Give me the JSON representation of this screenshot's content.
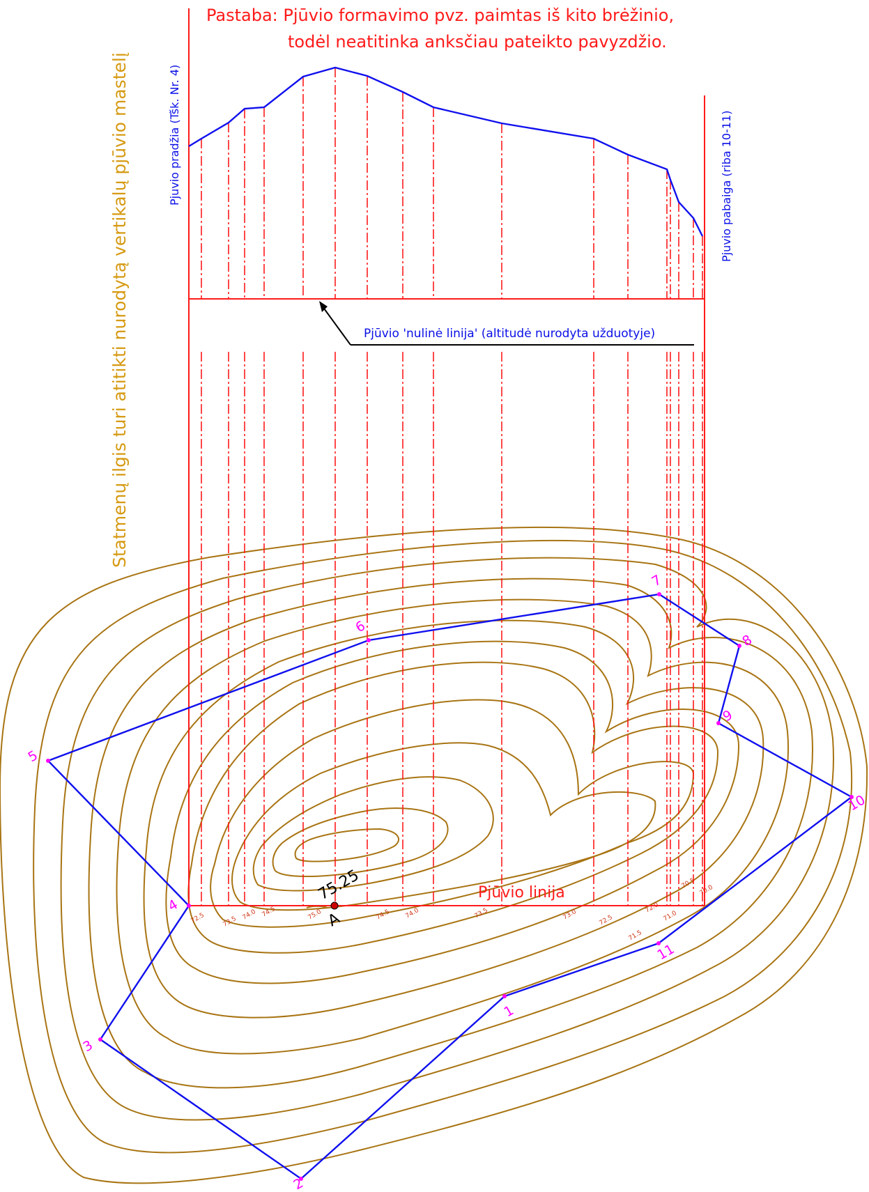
{
  "note": {
    "line1": "Pastaba: Pjūvio formavimo pvz. paimtas iš kito brėžinio,",
    "line2": "todėl neatitinka anksčiau pateikto  pavyzdžio."
  },
  "side_label_left": "Statmenų ilgis turi atitikti nurodytą vertikalų pjūvio mastelį",
  "profile_start_label": "Pjuvio pradžia (Tšk. Nr. 4)",
  "profile_end_label": "Pjuvio pabaiga (riba 10-11)",
  "zero_line_label": "Pjūvio 'nulinė linija' (altitudė nurodyta užduotyje)",
  "section_line_label": "Pjūvio linija",
  "peak": {
    "name": "A",
    "elevation": "75.25"
  },
  "points": [
    "1",
    "2",
    "3",
    "4",
    "5",
    "6",
    "7",
    "8",
    "9",
    "10",
    "11"
  ],
  "contour_labels": [
    "72.5",
    "73.5",
    "74.0",
    "74.5",
    "75.0",
    "74.5",
    "74.0",
    "73.5",
    "73.0",
    "72.5",
    "72.0",
    "71.5",
    "71.0",
    "70.5",
    "70.0"
  ],
  "colors": {
    "red": "#ff1a1a",
    "blue": "#1010ee",
    "contour": "#a87413",
    "gold_text": "#d69a12",
    "points": "#ff00ff"
  }
}
